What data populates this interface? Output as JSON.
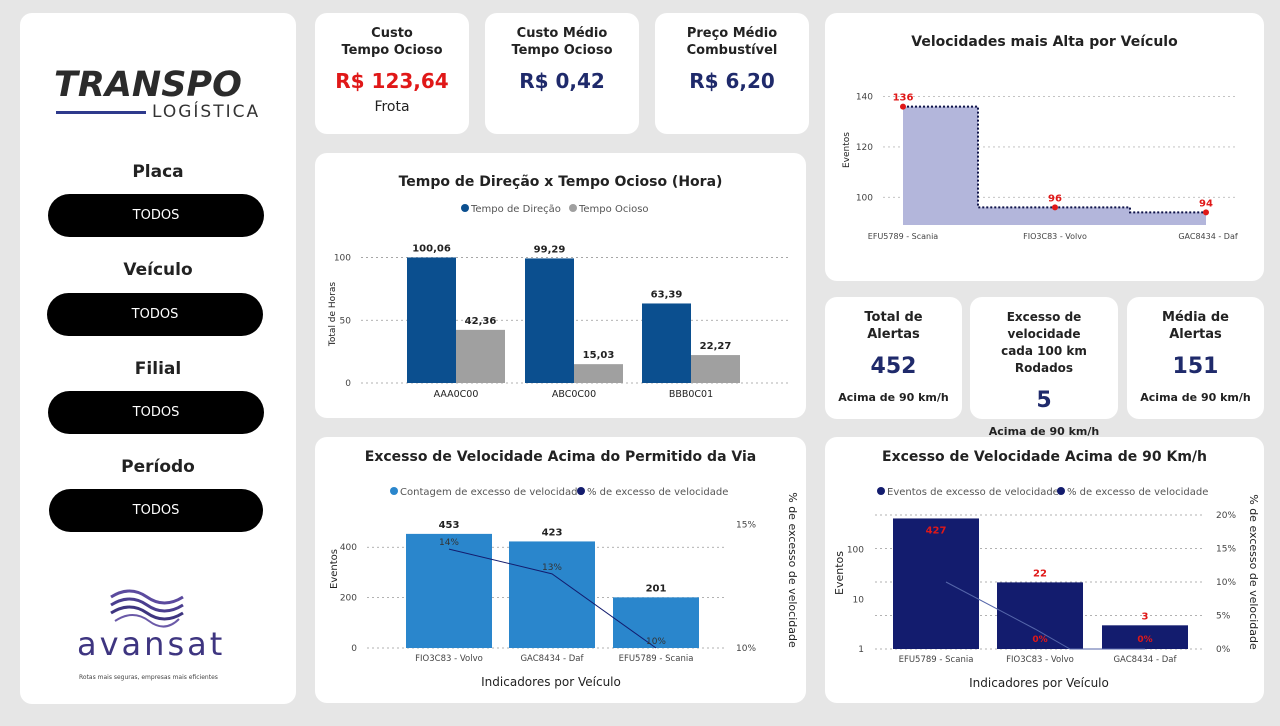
{
  "sidebar": {
    "logo": {
      "main": "TRANSPO",
      "sub": "LOGÍSTICA"
    },
    "filters": [
      {
        "label": "Placa",
        "value": "TODOS"
      },
      {
        "label": "Veículo",
        "value": "TODOS"
      },
      {
        "label": "Filial",
        "value": "TODOS"
      },
      {
        "label": "Período",
        "value": "TODOS"
      }
    ],
    "brand": {
      "name": "avansat",
      "tagline": "Rotas mais seguras, empresas mais eficientes"
    }
  },
  "kpis_top": [
    {
      "title_line1": "Custo",
      "title_line2": "Tempo Ocioso",
      "value": "R$ 123,64",
      "sub": "Frota",
      "color": "#e01818"
    },
    {
      "title_line1": "Custo Médio",
      "title_line2": "Tempo Ocioso",
      "value": "R$ 0,42",
      "color": "#1f2a6b"
    },
    {
      "title_line1": "Preço Médio",
      "title_line2": "Combustível",
      "value": "R$ 6,20",
      "color": "#1f2a6b"
    }
  ],
  "kpis_right": [
    {
      "title_line1": "Total de",
      "title_line2": "Alertas",
      "value": "452",
      "sub": "Acima de 90 km/h"
    },
    {
      "title_line1": "Excesso de velocidade",
      "title_line2": "cada 100 km Rodados",
      "value": "5",
      "sub": "Acima de 90 km/h"
    },
    {
      "title_line1": "Média de",
      "title_line2": "Alertas",
      "value": "151",
      "sub": "Acima de 90 km/h"
    }
  ],
  "colors": {
    "blue_dark": "#0b4f8f",
    "gray": "#a0a0a0",
    "blue_light": "#2a86cc",
    "navy": "#131c6e",
    "lavender": "#b3b6db",
    "red": "#e01818"
  },
  "chart_data": [
    {
      "type": "bar",
      "title": "Tempo de Direção x Tempo Ocioso (Hora)",
      "categories": [
        "AAA0C00",
        "ABC0C00",
        "BBB0C01"
      ],
      "series": [
        {
          "name": "Tempo de Direção",
          "values": [
            100.06,
            99.29,
            63.39
          ]
        },
        {
          "name": "Tempo Ocioso",
          "values": [
            42.36,
            15.03,
            22.27
          ]
        }
      ],
      "data_labels": [
        [
          "100,06",
          "99,29",
          "63,39"
        ],
        [
          "42,36",
          "15,03",
          "22,27"
        ]
      ],
      "ylabel": "Total de Horas",
      "yticks": [
        "0",
        "50",
        "100"
      ],
      "ylim": [
        0,
        110
      ],
      "legend": "top"
    },
    {
      "type": "area",
      "title": "Velocidades mais Alta por Veículo",
      "categories": [
        "EFU5789 - Scania",
        "FIO3C83 - Volvo",
        "GAC8434 - Daf"
      ],
      "values": [
        136,
        96,
        94
      ],
      "data_labels": [
        "136",
        "96",
        "94"
      ],
      "ylabel": "Eventos",
      "yticks": [
        "100",
        "120",
        "140"
      ],
      "ylim": [
        89,
        143
      ]
    },
    {
      "type": "bar",
      "title": "Excesso de Velocidade Acima do Permitido da Via",
      "categories": [
        "FIO3C83 - Volvo",
        "GAC8434 - Daf",
        "EFU5789 - Scania"
      ],
      "series": [
        {
          "name": "Contagem de excesso de velocidade",
          "values": [
            453,
            423,
            201
          ]
        },
        {
          "name": "% de excesso de velocidade",
          "values": [
            14,
            13,
            10
          ]
        }
      ],
      "bar_labels": [
        "453",
        "423",
        "201"
      ],
      "line_labels": [
        "14%",
        "13%",
        "10%"
      ],
      "xlabel": "Indicadores por Veículo",
      "ylabel": "Eventos",
      "y2label": "% de excesso de velocidade",
      "yticks": [
        "0",
        "200",
        "400"
      ],
      "y2ticks": [
        "10%",
        "15%"
      ],
      "ylim": [
        0,
        520
      ],
      "y2lim": [
        10,
        15.3
      ],
      "legend": "top"
    },
    {
      "type": "bar",
      "title": "Excesso de Velocidade Acima de 90 Km/h",
      "categories": [
        "EFU5789 - Scania",
        "FIO3C83 - Volvo",
        "GAC8434 - Daf"
      ],
      "series": [
        {
          "name": "Eventos de excesso de velocidade",
          "values": [
            427,
            22,
            3
          ]
        },
        {
          "name": "% de excesso de velocidade",
          "values": [
            0,
            0,
            0
          ]
        }
      ],
      "bar_labels": [
        "427",
        "22",
        "3"
      ],
      "line_labels": [
        "0%",
        "0%",
        "0%"
      ],
      "xlabel": "Indicadores por Veículo",
      "ylabel": "Eventos",
      "y2label": "% de excesso de velocidade",
      "yticks": [
        "1",
        "10",
        "100"
      ],
      "y2ticks": [
        "0%",
        "5%",
        "10%",
        "15%",
        "20%"
      ],
      "ylog": true,
      "y2lim": [
        0,
        20
      ],
      "legend": "top"
    }
  ]
}
